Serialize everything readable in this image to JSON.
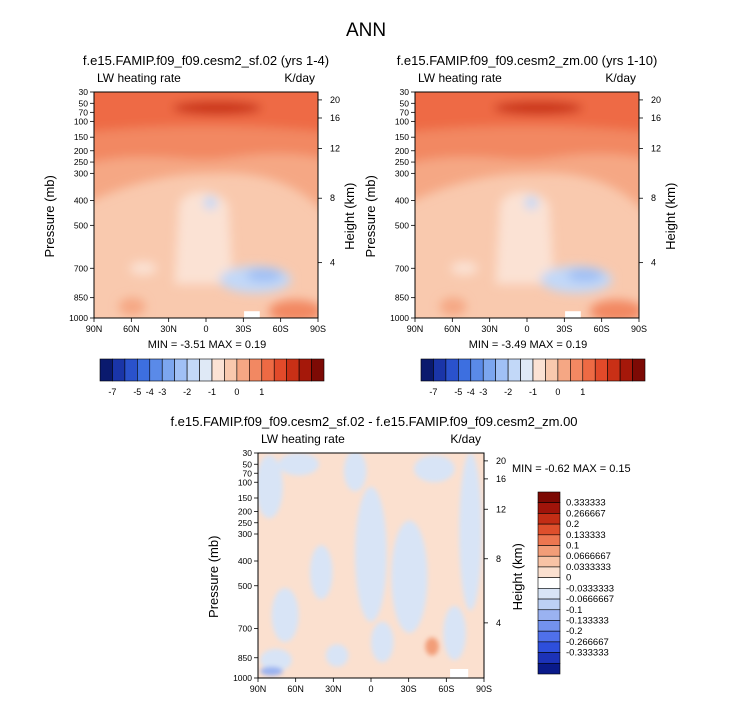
{
  "figure": {
    "title": "ANN"
  },
  "colors": {
    "blues": [
      "#0a1a6e",
      "#1a35a8",
      "#2a52cc",
      "#3d6fe0",
      "#5a8ae8",
      "#7ca6ef",
      "#a0c0f5",
      "#c2d8f8",
      "#dfe9f6"
    ],
    "reds": [
      "#fbe2d4",
      "#f9c9ae",
      "#f5a784",
      "#f28862",
      "#ee6a44",
      "#e24a2a",
      "#c93016",
      "#a5180a",
      "#7d0a05"
    ],
    "diff": [
      "#0a1a8a",
      "#1c32b8",
      "#2e4fdc",
      "#4f70ea",
      "#7392ee",
      "#9ab2f1",
      "#bcd0f4",
      "#d8e4f6",
      "#ffffff",
      "#fbe0cf",
      "#f8c3a5",
      "#f29d78",
      "#ec7650",
      "#de4f2c",
      "#c32d15",
      "#a0140a",
      "#7c0903"
    ]
  },
  "chart_data": [
    {
      "type": "heatmap",
      "title": "f.e15.FAMIP.f09_f09.cesm2_sf.02 (yrs 1-4)",
      "left_label": "LW heating rate",
      "right_label": "K/day",
      "ylabel": "Pressure (mb)",
      "y2label": "Height (km)",
      "xticks": [
        "90N",
        "60N",
        "30N",
        "0",
        "30S",
        "60S",
        "90S"
      ],
      "yticks": [
        "30",
        "50",
        "70",
        "100",
        "150",
        "200",
        "250",
        "300",
        "400",
        "500",
        "700",
        "850",
        "1000"
      ],
      "y2ticks": [
        "20",
        "16",
        "12",
        "8",
        "4"
      ],
      "minmax": "MIN =  -3.51   MAX =   0.19",
      "colorbar_labels": [
        "-7",
        "-5",
        "-4",
        "-3",
        "-2",
        "-1",
        "0",
        "1"
      ]
    },
    {
      "type": "heatmap",
      "title": "f.e15.FAMIP.f09_f09.cesm2_zm.00 (yrs 1-10)",
      "left_label": "LW heating rate",
      "right_label": "K/day",
      "ylabel": "Pressure (mb)",
      "y2label": "Height (km)",
      "xticks": [
        "90N",
        "60N",
        "30N",
        "0",
        "30S",
        "60S",
        "90S"
      ],
      "yticks": [
        "30",
        "50",
        "70",
        "100",
        "150",
        "200",
        "250",
        "300",
        "400",
        "500",
        "700",
        "850",
        "1000"
      ],
      "y2ticks": [
        "20",
        "16",
        "12",
        "8",
        "4"
      ],
      "minmax": "MIN =  -3.49   MAX =   0.19",
      "colorbar_labels": [
        "-7",
        "-5",
        "-4",
        "-3",
        "-2",
        "-1",
        "0",
        "1"
      ]
    },
    {
      "type": "heatmap",
      "title": "f.e15.FAMIP.f09_f09.cesm2_sf.02 - f.e15.FAMIP.f09_f09.cesm2_zm.00",
      "left_label": "LW heating rate",
      "right_label": "K/day",
      "ylabel": "Pressure (mb)",
      "y2label": "Height (km)",
      "xticks": [
        "90N",
        "60N",
        "30N",
        "0",
        "30S",
        "60S",
        "90S"
      ],
      "yticks": [
        "30",
        "50",
        "70",
        "100",
        "150",
        "200",
        "250",
        "300",
        "400",
        "500",
        "700",
        "850",
        "1000"
      ],
      "y2ticks": [
        "20",
        "16",
        "12",
        "8",
        "4"
      ],
      "minmax": "MIN =  -0.62   MAX =   0.15",
      "colorbar_labels": [
        "0.333333",
        "0.266667",
        "0.2",
        "0.133333",
        "0.1",
        "0.0666667",
        "0.0333333",
        "0",
        "-0.0333333",
        "-0.0666667",
        "-0.1",
        "-0.133333",
        "-0.2",
        "-0.266667",
        "-0.333333"
      ]
    }
  ]
}
